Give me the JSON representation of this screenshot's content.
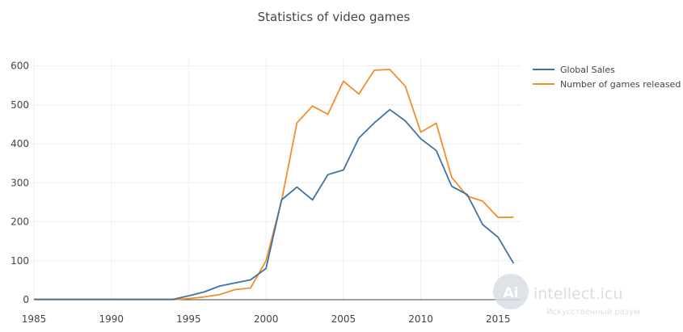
{
  "chart_data": {
    "type": "line",
    "title": "Statistics of video games",
    "xlabel": "",
    "ylabel": "",
    "xlim": [
      1985,
      2016.5
    ],
    "ylim": [
      0,
      620
    ],
    "xticks": [
      1985,
      1990,
      1995,
      2000,
      2005,
      2010,
      2015
    ],
    "yticks": [
      0,
      100,
      200,
      300,
      400,
      500,
      600
    ],
    "grid": true,
    "legend_position": "top-right",
    "x": [
      1985,
      1986,
      1987,
      1988,
      1989,
      1990,
      1991,
      1992,
      1993,
      1994,
      1995,
      1996,
      1997,
      1998,
      1999,
      2000,
      2001,
      2002,
      2003,
      2004,
      2005,
      2006,
      2007,
      2008,
      2009,
      2010,
      2011,
      2012,
      2013,
      2014,
      2015,
      2016
    ],
    "series": [
      {
        "name": "Global Sales",
        "color": "#3d72a8",
        "values": [
          1,
          1,
          1,
          1,
          1,
          1,
          1,
          1,
          1,
          1,
          10,
          20,
          35,
          43,
          51,
          80,
          256,
          289,
          256,
          321,
          333,
          415,
          454,
          488,
          459,
          413,
          383,
          291,
          270,
          193,
          160,
          93
        ]
      },
      {
        "name": "Number of games released",
        "color": "#f28e2b",
        "values": [
          0,
          0,
          0,
          0,
          0,
          0,
          0,
          0,
          0,
          0,
          3,
          7,
          13,
          26,
          30,
          100,
          254,
          454,
          497,
          476,
          561,
          528,
          589,
          591,
          548,
          430,
          453,
          314,
          266,
          253,
          211,
          212
        ]
      }
    ]
  },
  "watermark": {
    "logo_letter": "Ai",
    "name": "intellect.icu",
    "subtitle": "Искусственный разум"
  }
}
